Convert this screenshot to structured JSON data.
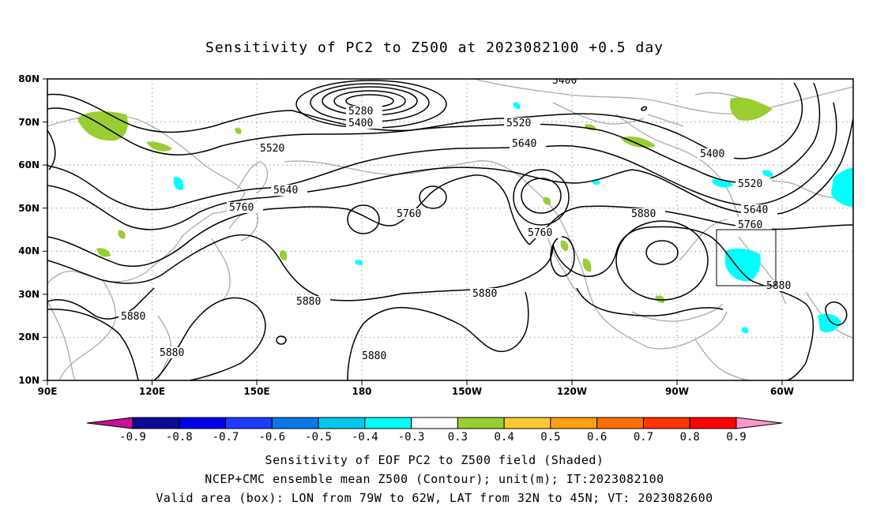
{
  "title": "Sensitivity of PC2 to Z500 at 2023082100 +0.5 day",
  "lat_ticks": [
    "80N",
    "70N",
    "60N",
    "50N",
    "40N",
    "30N",
    "20N",
    "10N"
  ],
  "lon_ticks": [
    "90E",
    "120E",
    "150E",
    "180",
    "150W",
    "120W",
    "90W",
    "60W"
  ],
  "contour_labels": [
    "5400",
    "5280",
    "5400",
    "5520",
    "5520",
    "5640",
    "5640",
    "5760",
    "5760",
    "5760",
    "5880",
    "5880",
    "5880",
    "5880",
    "5880",
    "5880",
    "5400",
    "5520",
    "5640",
    "5760",
    "5880"
  ],
  "colorbar": {
    "levels": [
      "-0.9",
      "-0.8",
      "-0.7",
      "-0.6",
      "-0.5",
      "-0.4",
      "-0.3",
      "0.3",
      "0.4",
      "0.5",
      "0.6",
      "0.7",
      "0.8",
      "0.9"
    ],
    "colors": [
      "#c80f96",
      "#0a0a96",
      "#0000e6",
      "#1e3cff",
      "#0a78e6",
      "#00c8f0",
      "#00ffff",
      "#ffffff",
      "#9acd32",
      "#ffc832",
      "#ffa014",
      "#ff6e00",
      "#ff3200",
      "#ff0000",
      "#ff96c8"
    ]
  },
  "footer": {
    "line1": "Sensitivity of EOF PC2 to Z500 field (Shaded)",
    "line2": "NCEP+CMC ensemble mean Z500 (Contour); unit(m); IT:2023082100",
    "line3": "Valid area (box): LON from 79W to 62W, LAT from 32N to 45N; VT: 2023082600"
  }
}
